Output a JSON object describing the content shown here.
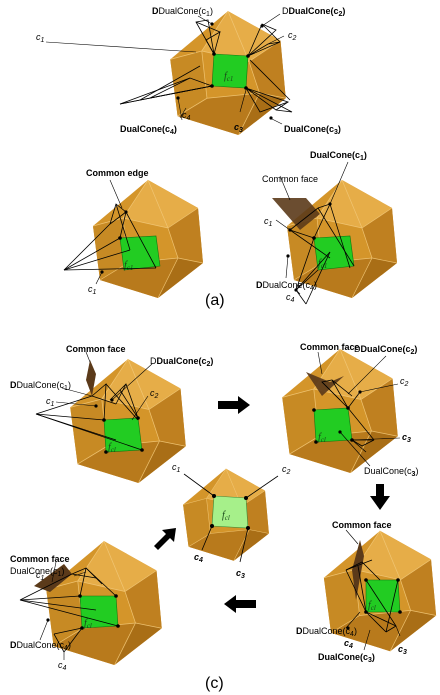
{
  "panel_a": {
    "caption": "(a)",
    "top": {
      "face": "f",
      "face_sub": "c1",
      "dual_c1": "DualCone(c",
      "dual_c1_sub": "1",
      "dual_c2": "DualCone(c",
      "dual_c2_sub": "2",
      "dual_c3": "DualCone(c",
      "dual_c3_sub": "3",
      "dual_c4": "DualCone(c",
      "dual_c4_sub": "4",
      "c1": "c",
      "c1_sub": "1",
      "c2": "c",
      "c2_sub": "2",
      "c3": "c",
      "c3_sub": "3",
      "c4": "c",
      "c4_sub": "4",
      "close_paren": ")"
    },
    "left": {
      "common_edge": "Common edge",
      "c1": "c",
      "c1_sub": "1",
      "face": "f",
      "face_sub": "c1"
    },
    "right": {
      "common_face": "Common face",
      "dual_c1": "DualCone(c",
      "dual_c1_sub": "1",
      "dual_c4": "DualCone(c",
      "dual_c4_sub": "4",
      "c1": "c",
      "c1_sub": "1",
      "c4": "c",
      "c4_sub": "4",
      "face": "f",
      "face_sub": "c1",
      "close_paren": ")"
    }
  },
  "panel_c": {
    "caption": "(c)",
    "tl": {
      "common_face": "Common face",
      "dual_c1": "DualCone(c",
      "dual_c1_sub": "1",
      "dual_c2": "DualCone(c",
      "dual_c2_sub": "2",
      "c1": "c",
      "c1_sub": "1",
      "c2": "c",
      "c2_sub": "2",
      "face": "f",
      "face_sub": "cl",
      "close_paren": ")"
    },
    "tr": {
      "common_face": "Common face",
      "dual_c2": "DualCone(c",
      "dual_c2_sub": "2",
      "dual_c3": "DualCone(c",
      "dual_c3_sub": "3",
      "c2": "c",
      "c2_sub": "2",
      "c3": "c",
      "c3_sub": "3",
      "face": "f",
      "face_sub": "cl",
      "close_paren": ")"
    },
    "center": {
      "c1": "c",
      "c1_sub": "1",
      "c2": "c",
      "c2_sub": "2",
      "c3": "c",
      "c3_sub": "3",
      "c4": "c",
      "c4_sub": "4",
      "face": "f",
      "face_sub": "cl"
    },
    "br": {
      "common_face": "Common face",
      "dual_c4": "DualCone(c",
      "dual_c4_sub": "4",
      "dual_c3": "DualCone(c",
      "dual_c3_sub": "3",
      "c3": "c",
      "c3_sub": "3",
      "c4": "c",
      "c4_sub": "4",
      "face": "f",
      "face_sub": "cl",
      "close_paren": ")"
    },
    "bl": {
      "common_face": "Common face",
      "dual_c1": "DualCone(c",
      "dual_c1_sub": "1",
      "dual_c4": "DualCone(c",
      "dual_c4_sub": "4",
      "c1": "c",
      "c1_sub": "1",
      "c4": "c",
      "c4_sub": "4",
      "face": "f",
      "face_sub": "cl",
      "close_paren": ")"
    }
  },
  "colors": {
    "hull_light": "#e0a238",
    "hull_mid": "#c98a22",
    "hull_dark": "#a86e14",
    "face_green": "#22cc22",
    "face_light_green": "#a6f08a",
    "common_face_brown": "#5b3a1a",
    "cone_stroke": "#000000"
  }
}
